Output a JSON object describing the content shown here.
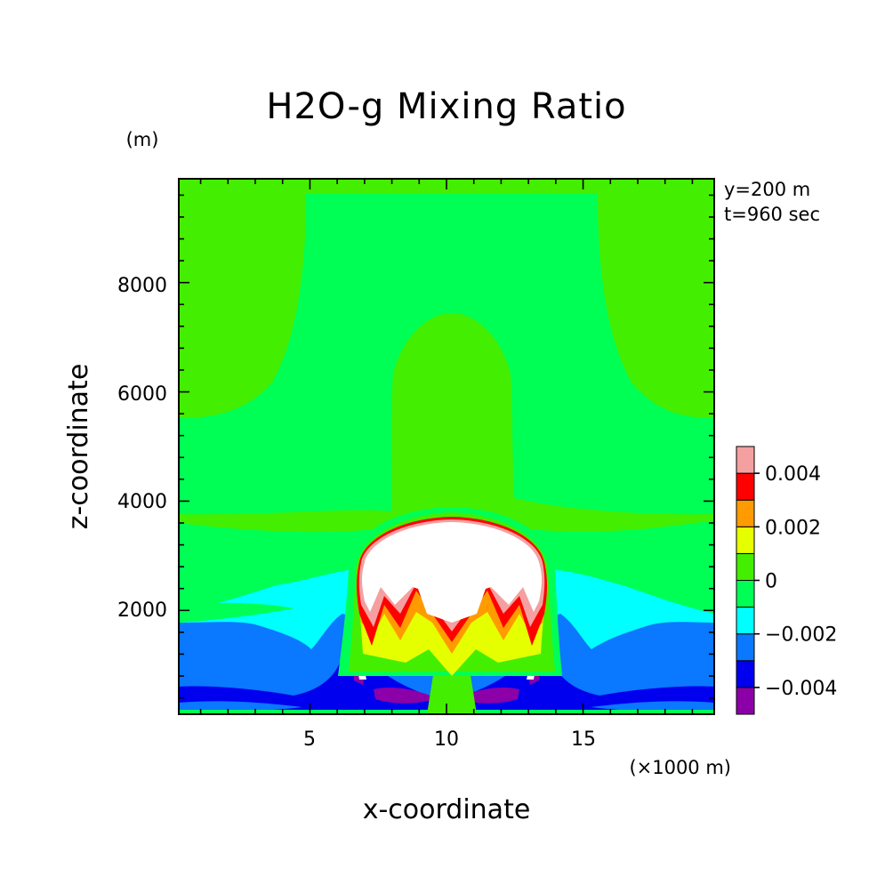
{
  "chart_data": {
    "type": "heatmap",
    "title": "H2O-g Mixing Ratio",
    "xlabel": "x-coordinate",
    "ylabel": "z-coordinate",
    "x_unit_label": "(×1000 m)",
    "y_unit_label": "(m)",
    "annotations": [
      "y=200 m",
      "t=960 sec"
    ],
    "xlim": [
      0.2,
      19.8
    ],
    "ylim": [
      100,
      9900
    ],
    "x_ticks": [
      5,
      10,
      15
    ],
    "x_tick_labels": [
      "5",
      "10",
      "15"
    ],
    "y_ticks": [
      2000,
      4000,
      6000,
      8000
    ],
    "y_tick_labels": [
      "2000",
      "4000",
      "6000",
      "8000"
    ],
    "grid": false,
    "colorbar": {
      "placement": "right",
      "levels": [
        -0.005,
        -0.004,
        -0.003,
        -0.002,
        -0.001,
        0,
        0.001,
        0.002,
        0.003,
        0.004,
        0.005
      ],
      "colors": [
        "#8C00A8",
        "#0000EE",
        "#0A78FF",
        "#00FFFF",
        "#00FF55",
        "#44EE00",
        "#E6FF00",
        "#FF9B00",
        "#FF0000",
        "#F4A0A0"
      ],
      "tick_values": [
        -0.004,
        -0.002,
        0,
        0.002,
        0.004
      ],
      "tick_labels": [
        "−0.004",
        "−0.002",
        "0",
        "0.002",
        "0.004"
      ]
    },
    "regions": [
      {
        "level": "-0.001 to 0",
        "description": "background field"
      },
      {
        "level": "-0.002 to -0.001",
        "x_range": [
          0.2,
          19.8
        ],
        "z_range": [
          100,
          2300
        ]
      },
      {
        "level": "-0.003 to -0.002",
        "x_range": [
          0.2,
          19.8
        ],
        "z_range": [
          100,
          1800
        ]
      },
      {
        "level": "-0.004 to -0.003",
        "x_range": [
          0.2,
          19.8
        ],
        "z_range": [
          100,
          900
        ]
      },
      {
        "level": "-0.005 to -0.004",
        "x_range": [
          6.6,
          13.6
        ],
        "z_range": [
          200,
          600
        ]
      },
      {
        "level": "above 0.005",
        "center_x": 10,
        "top_z": 3650,
        "bottom_z": 1500
      }
    ]
  }
}
